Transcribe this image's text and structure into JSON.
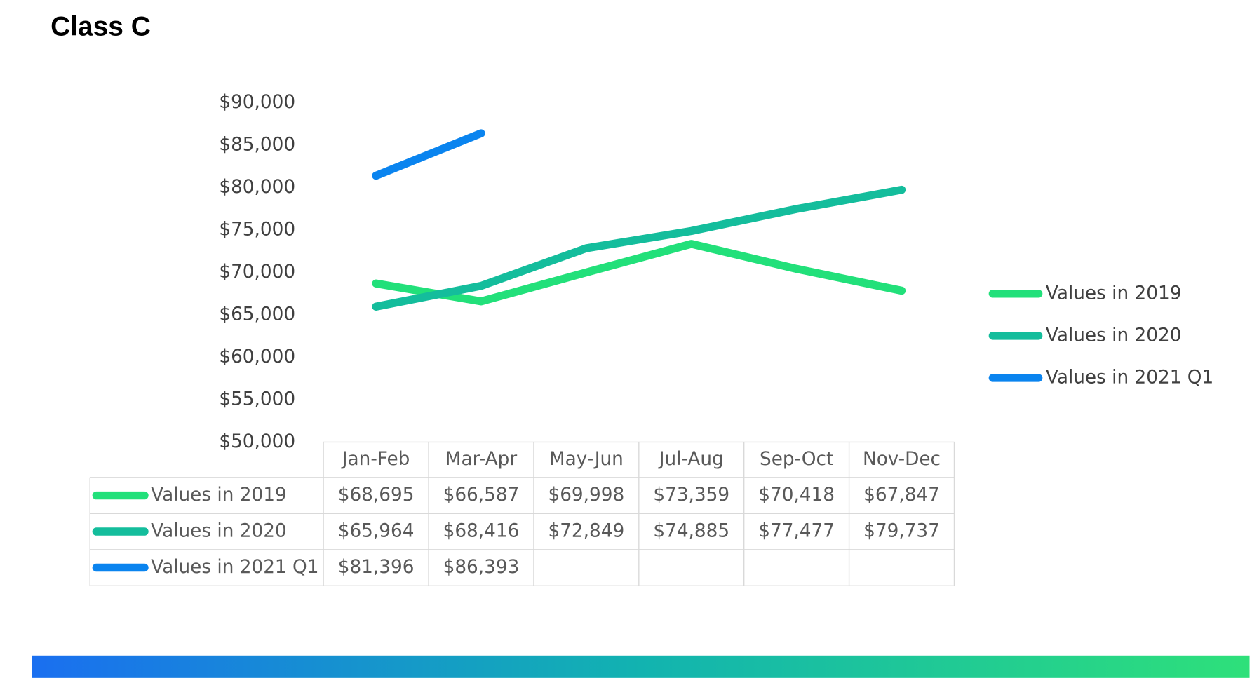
{
  "chart_data": {
    "type": "line",
    "title": "Class C",
    "categories": [
      "Jan-Feb",
      "Mar-Apr",
      "May-Jun",
      "Jul-Aug",
      "Sep-Oct",
      "Nov-Dec"
    ],
    "series": [
      {
        "name": "Values in 2019",
        "color": "#22e07a",
        "values": [
          68695,
          66587,
          69998,
          73359,
          70418,
          67847
        ],
        "value_labels": [
          "$68,695",
          "$66,587",
          "$69,998",
          "$73,359",
          "$70,418",
          "$67,847"
        ]
      },
      {
        "name": "Values in 2020",
        "color": "#14bd9c",
        "values": [
          65964,
          68416,
          72849,
          74885,
          77477,
          79737
        ],
        "value_labels": [
          "$65,964",
          "$68,416",
          "$72,849",
          "$74,885",
          "$77,477",
          "$79,737"
        ]
      },
      {
        "name": "Values in 2021 Q1",
        "color": "#0a84ef",
        "values": [
          81396,
          86393,
          null,
          null,
          null,
          null
        ],
        "value_labels": [
          "$81,396",
          "$86,393",
          null,
          null,
          null,
          null
        ]
      }
    ],
    "ylim": [
      50000,
      90000
    ],
    "yticks": [
      {
        "value": 50000,
        "label": "$50,000"
      },
      {
        "value": 55000,
        "label": "$55,000"
      },
      {
        "value": 60000,
        "label": "$60,000"
      },
      {
        "value": 65000,
        "label": "$65,000"
      },
      {
        "value": 70000,
        "label": "$70,000"
      },
      {
        "value": 75000,
        "label": "$75,000"
      },
      {
        "value": 80000,
        "label": "$80,000"
      },
      {
        "value": 85000,
        "label": "$85,000"
      },
      {
        "value": 90000,
        "label": "$90,000"
      }
    ],
    "legend": "right"
  }
}
